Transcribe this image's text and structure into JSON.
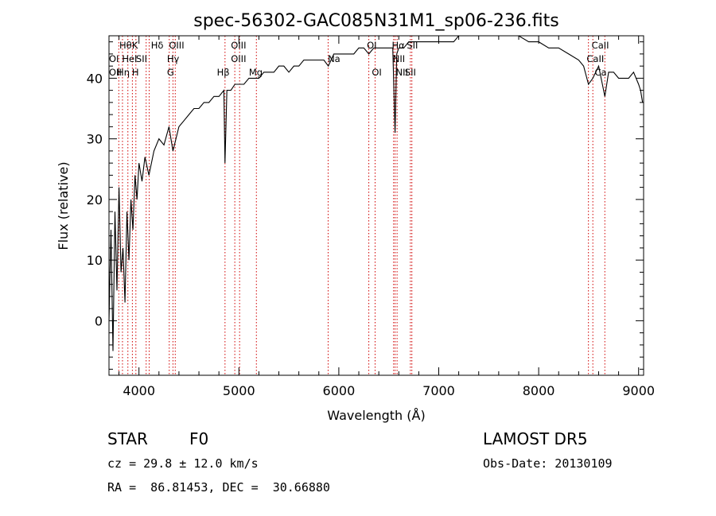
{
  "chart_data": {
    "type": "line",
    "title": "spec-56302-GAC085N31M1_sp06-236.fits",
    "xlabel": "Wavelength (Å)",
    "ylabel": "Flux (relative)",
    "xlim": [
      3700,
      9050
    ],
    "ylim": [
      -9,
      47
    ],
    "x_ticks": [
      4000,
      5000,
      6000,
      7000,
      8000,
      9000
    ],
    "y_ticks": [
      0,
      10,
      20,
      30,
      40
    ],
    "grid": false,
    "series": [
      {
        "x": [
          3700,
          3720,
          3740,
          3760,
          3780,
          3800,
          3820,
          3840,
          3860,
          3880,
          3900,
          3920,
          3940,
          3960,
          3980,
          4000,
          4030,
          4060,
          4100,
          4150,
          4200,
          4250,
          4300,
          4340,
          4400,
          4450,
          4500,
          4550,
          4600,
          4650,
          4700,
          4750,
          4800,
          4850,
          4861,
          4880,
          4920,
          4960,
          5000,
          5050,
          5100,
          5150,
          5200,
          5250,
          5300,
          5350,
          5400,
          5450,
          5500,
          5550,
          5600,
          5650,
          5700,
          5750,
          5800,
          5850,
          5895,
          5950,
          6000,
          6050,
          6100,
          6150,
          6200,
          6250,
          6300,
          6350,
          6400,
          6450,
          6500,
          6540,
          6563,
          6580,
          6600,
          6650,
          6700,
          6750,
          6800,
          6850,
          6900,
          6950,
          7000,
          7050,
          7100,
          7150,
          7200,
          7300,
          7400,
          7500,
          7600,
          7700,
          7800,
          7900,
          8000,
          8100,
          8200,
          8300,
          8400,
          8450,
          8498,
          8542,
          8600,
          8662,
          8700,
          8750,
          8800,
          8850,
          8900,
          8950,
          9000,
          9020,
          9040
        ],
        "y": [
          0,
          15,
          -5,
          18,
          5,
          22,
          8,
          12,
          3,
          18,
          10,
          20,
          15,
          24,
          20,
          26,
          23,
          27,
          24,
          28,
          30,
          29,
          32,
          28,
          32,
          33,
          34,
          35,
          35,
          36,
          36,
          37,
          37,
          38,
          26,
          38,
          38,
          39,
          39,
          39,
          40,
          40,
          40,
          41,
          41,
          41,
          42,
          42,
          41,
          42,
          42,
          43,
          43,
          43,
          43,
          43,
          42,
          44,
          44,
          44,
          44,
          44,
          45,
          45,
          44,
          45,
          45,
          45,
          45,
          45,
          31,
          44,
          45,
          45,
          46,
          46,
          46,
          46,
          46,
          46,
          46,
          46,
          46,
          46,
          47,
          47,
          47,
          47,
          47,
          47,
          47,
          46,
          46,
          45,
          45,
          44,
          43,
          42,
          39,
          40,
          42,
          37,
          41,
          41,
          40,
          40,
          40,
          41,
          39,
          38,
          36
        ]
      }
    ],
    "annotations": [
      {
        "x": 3798,
        "row": 0,
        "label": "Hθ"
      },
      {
        "x": 3835,
        "row": 0,
        "label": "Hη"
      },
      {
        "x": 3889,
        "row": 0,
        "label": "HeI"
      },
      {
        "x": 3934,
        "row": 0,
        "label": "K"
      },
      {
        "x": 3969,
        "row": 0,
        "label": "H"
      },
      {
        "x": 4072,
        "row": 0,
        "label": "SII"
      },
      {
        "x": 4102,
        "row": 0,
        "label": "Hδ"
      },
      {
        "x": 4303,
        "row": 0,
        "label": "G"
      },
      {
        "x": 4340,
        "row": 0,
        "label": "Hγ"
      },
      {
        "x": 4363,
        "row": 0,
        "label": "OIII"
      },
      {
        "x": 4861,
        "row": 0,
        "label": "Hβ"
      },
      {
        "x": 4959,
        "row": 0,
        "label": "OIII"
      },
      {
        "x": 5007,
        "row": 0,
        "label": "OIII"
      },
      {
        "x": 5175,
        "row": 0,
        "label": "Mg"
      },
      {
        "x": 5893,
        "row": 0,
        "label": "Na"
      },
      {
        "x": 6300,
        "row": 0,
        "label": "OI"
      },
      {
        "x": 6363,
        "row": 0,
        "label": "OI"
      },
      {
        "x": 6548,
        "row": 0,
        "label": "NII"
      },
      {
        "x": 6563,
        "row": 0,
        "label": "Hα"
      },
      {
        "x": 6583,
        "row": 0,
        "label": "NII"
      },
      {
        "x": 6716,
        "row": 0,
        "label": "SII"
      },
      {
        "x": 6731,
        "row": 0,
        "label": "SII"
      },
      {
        "x": 8498,
        "row": 0,
        "label": "CaII"
      },
      {
        "x": 8542,
        "row": 0,
        "label": "CaII"
      },
      {
        "x": 8662,
        "row": 0,
        "label": "CaII"
      }
    ],
    "annotation_texts": [
      {
        "text": "Hθ",
        "x": 3803,
        "row": 0
      },
      {
        "text": "K",
        "x": 3930,
        "row": 0
      },
      {
        "text": "Hδ",
        "x": 4120,
        "row": 0
      },
      {
        "text": "OIII",
        "x": 4300,
        "row": 0
      },
      {
        "text": "OIII",
        "x": 4920,
        "row": 0
      },
      {
        "text": "OI",
        "x": 6280,
        "row": 0
      },
      {
        "text": "Hα",
        "x": 6530,
        "row": 0
      },
      {
        "text": "SII",
        "x": 6680,
        "row": 0
      },
      {
        "text": "CaII",
        "x": 8530,
        "row": 0
      },
      {
        "text": "OI",
        "x": 3700,
        "row": 1
      },
      {
        "text": "HeI",
        "x": 3830,
        "row": 1
      },
      {
        "text": "SII",
        "x": 3970,
        "row": 1
      },
      {
        "text": "Hγ",
        "x": 4280,
        "row": 1
      },
      {
        "text": "OIII",
        "x": 4920,
        "row": 1
      },
      {
        "text": "Na",
        "x": 5890,
        "row": 1
      },
      {
        "text": "NII",
        "x": 6540,
        "row": 1
      },
      {
        "text": "CaII",
        "x": 8480,
        "row": 1
      },
      {
        "text": "OII",
        "x": 3700,
        "row": 2
      },
      {
        "text": "Hη",
        "x": 3780,
        "row": 2
      },
      {
        "text": "H",
        "x": 3930,
        "row": 2
      },
      {
        "text": "G",
        "x": 4280,
        "row": 2
      },
      {
        "text": "Hβ",
        "x": 4780,
        "row": 2
      },
      {
        "text": "Mg",
        "x": 5100,
        "row": 2
      },
      {
        "text": "OI",
        "x": 6330,
        "row": 2
      },
      {
        "text": "NII",
        "x": 6570,
        "row": 2
      },
      {
        "text": "SII",
        "x": 6660,
        "row": 2
      },
      {
        "text": "Ca",
        "x": 8560,
        "row": 2
      }
    ]
  },
  "info": {
    "object_type": "STAR",
    "subclass": "F0",
    "survey": "LAMOST DR5",
    "redshift": "cz = 29.8 ± 12.0 km/s",
    "obs_date": "Obs-Date: 20130109",
    "coords": "RA =  86.81453, DEC =  30.66880"
  }
}
